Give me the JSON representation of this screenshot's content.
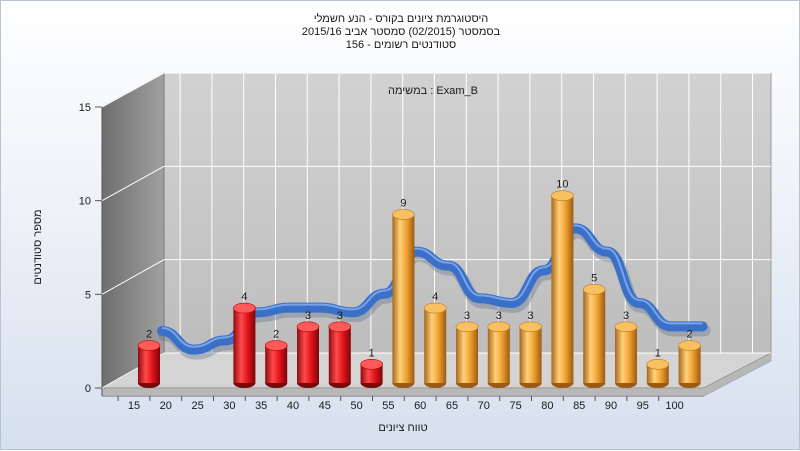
{
  "chart_data": {
    "type": "bar",
    "title_lines": [
      "היסטוגרמת ציונים בקורס - הנע חשמלי",
      "בסמסטר (02/2015) סמסטר אביב 2015/16",
      "156 - סטודנטים רשומים"
    ],
    "annotation": "במשימה : Exam_B",
    "xlabel": "טווח ציונים",
    "ylabel": "מספר סטודנטים",
    "ylim": [
      0,
      15
    ],
    "yticks": [
      0,
      5,
      10,
      15
    ],
    "categories": [
      "15",
      "20",
      "25",
      "30",
      "35",
      "40",
      "45",
      "50",
      "55",
      "60",
      "65",
      "70",
      "75",
      "80",
      "85",
      "90",
      "95",
      "100"
    ],
    "values": [
      2,
      0,
      0,
      4,
      2,
      3,
      3,
      1,
      9,
      4,
      3,
      3,
      3,
      10,
      5,
      3,
      1,
      2
    ],
    "bar_groups": [
      "fail",
      "fail",
      "fail",
      "fail",
      "fail",
      "fail",
      "fail",
      "fail",
      "pass",
      "pass",
      "pass",
      "pass",
      "pass",
      "pass",
      "pass",
      "pass",
      "pass",
      "pass"
    ],
    "trend_line": "smoothed distribution curve",
    "grid": true,
    "colors": {
      "fail": "#e0141a",
      "pass": "#f0a030",
      "curve": "#3a70c8",
      "back_wall": "#c8c8c8",
      "side_wall": "#8a8a8a",
      "floor": "#d8d8d8"
    }
  }
}
